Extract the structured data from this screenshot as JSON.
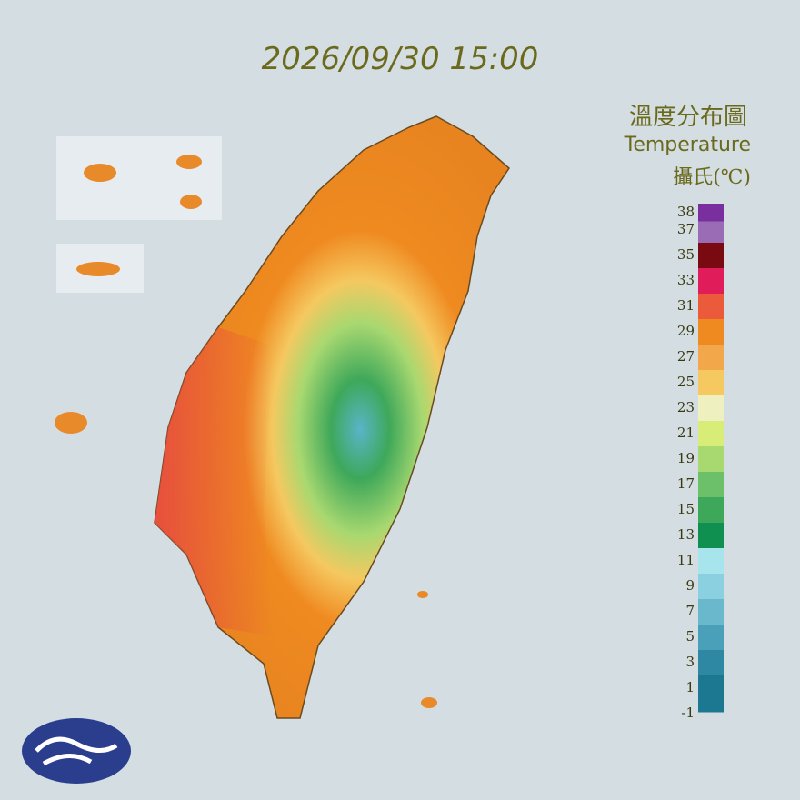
{
  "header": {
    "timestamp": "2026/09/30 15:00"
  },
  "legend": {
    "title_zh": "溫度分布圖",
    "title_en": "Temperature",
    "unit": "攝氏(℃)",
    "ticks": [
      38,
      37,
      35,
      33,
      31,
      29,
      27,
      25,
      23,
      21,
      19,
      17,
      15,
      13,
      11,
      9,
      7,
      5,
      3,
      1,
      -1
    ],
    "colors": [
      "#7a2f9e",
      "#9a6cb6",
      "#7a0a12",
      "#e01c5a",
      "#ec5a3c",
      "#ef8a20",
      "#f2a84a",
      "#f5c860",
      "#eef0c0",
      "#d8ec78",
      "#a8d870",
      "#6cc06a",
      "#3ea85a",
      "#109050",
      "#a8e4ec",
      "#8ad0e0",
      "#6ab8cc",
      "#4aa0b8",
      "#2e88a4",
      "#1c7890"
    ]
  }
}
